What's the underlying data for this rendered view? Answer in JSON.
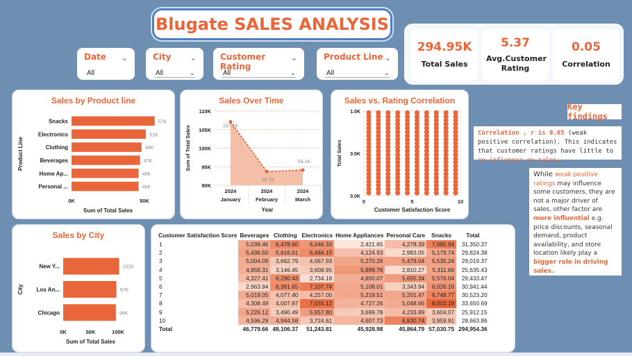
{
  "title": "Blugate SALES ANALYSIS",
  "slicers": [
    {
      "label": "Date",
      "value": "All"
    },
    {
      "label": "City",
      "value": "All"
    },
    {
      "label": "Customer Rating",
      "value": "All"
    },
    {
      "label": "Product Line",
      "value": "All"
    }
  ],
  "kpis": [
    {
      "value": "294.95K",
      "label": "Total Sales"
    },
    {
      "value": "5.37",
      "label": "Avg.Customer Rating"
    },
    {
      "value": "0.05",
      "label": "Correlation"
    }
  ],
  "key_findings": {
    "title": "Key findings",
    "note1_a": "Correlation , r is 0.05",
    "note1_b": " (weak positive correlation). This indicates that customer ratings have little to ",
    "note1_c": "no influence on sales.",
    "note2_a": "While ",
    "note2_b": "weak positive ratings",
    "note2_c": " may influence some customers, they are not a major driver of sales, other factor are ",
    "note2_d": "more influential",
    "note2_e": " e.g. price discounts, seasonal demand, product availability, and store location likely play a ",
    "note2_f": "bigger role in driving sales."
  },
  "chart_data": [
    {
      "type": "bar",
      "title": "Sales by Product line",
      "ylabel": "Product Line",
      "xlabel": "Sum of Total Sales",
      "categories": [
        "Snacks",
        "Electronics",
        "Clothing",
        "Beverages",
        "Home Ap...",
        "Personal ..."
      ],
      "values": [
        57,
        51,
        48,
        47,
        46,
        46
      ],
      "value_labels": [
        "57K",
        "51K",
        "48K",
        "47K",
        "46K",
        "46K"
      ],
      "xlim": [
        0,
        50
      ],
      "xticks": [
        "0K",
        "50K"
      ],
      "color": "#e8663a"
    },
    {
      "type": "area",
      "title": "Sales Over Time",
      "ylabel": "Sum of Total Sales",
      "xlabel": "Year",
      "categories": [
        "2024 January",
        "2024 February",
        "2024 March"
      ],
      "x_year": [
        "2024",
        "2024",
        "2024"
      ],
      "x_month": [
        "January",
        "February",
        "March"
      ],
      "values": [
        107.1,
        93.7,
        94.1
      ],
      "value_labels": [
        "107.1K",
        "93.7K",
        "94.1K"
      ],
      "ylim": [
        90,
        110
      ],
      "yticks": [
        "90K",
        "95K",
        "100K",
        "105K",
        "110K"
      ],
      "color": "#e8663a"
    },
    {
      "type": "scatter",
      "title": "Sales vs. Rating Correlation",
      "ylabel": "Total Sales",
      "xlabel": "Customer Satisfaction Score",
      "xlim": [
        0,
        10
      ],
      "ylim": [
        0,
        1.0
      ],
      "xticks": [
        "0",
        "5",
        "10"
      ],
      "yticks": [
        "0.0K",
        "0.5K",
        "1.0K"
      ],
      "x": [
        1,
        2,
        3,
        4,
        5,
        6,
        7,
        8,
        9,
        10
      ],
      "note": "dense vertical columns of points at each integer score from about 0 to 1.0K",
      "color": "#e8663a"
    },
    {
      "type": "bar",
      "title": "Sales by City",
      "ylabel": "City",
      "xlabel": "Sum of Total Sales",
      "categories": [
        "New Y...",
        "Los An...",
        "Chicago"
      ],
      "values": [
        102,
        97,
        96
      ],
      "value_labels": [
        "102K",
        "97K",
        "96K"
      ],
      "xlim": [
        0,
        100
      ],
      "xticks": [
        "0K",
        "50K",
        "100K"
      ],
      "color": "#e8663a"
    },
    {
      "type": "table",
      "headers": [
        "Customer Satisfaction Score",
        "Beverages",
        "Clothing",
        "Electronics",
        "Home Appliances",
        "Personal Care",
        "Snacks",
        "Total"
      ],
      "rows": [
        [
          "1",
          "5,039.46",
          "6,478.60",
          "6,046.33",
          "2,421.65",
          "4,278.39",
          "7,085.94",
          "31,350.37"
        ],
        [
          "2",
          "5,436.50",
          "5,616.01",
          "6,484.15",
          "4,124.93",
          "2,983.05",
          "5,179.74",
          "29,824.38"
        ],
        [
          "3",
          "5,004.09",
          "3,662.79",
          "4,067.93",
          "5,270.28",
          "5,479.04",
          "5,535.24",
          "29,019.37"
        ],
        [
          "4",
          "4,858.31",
          "3,146.45",
          "3,608.95",
          "5,899.76",
          "2,810.27",
          "5,311.69",
          "25,635.43"
        ],
        [
          "5",
          "4,327.41",
          "6,290.43",
          "2,734.18",
          "4,850.07",
          "5,655.34",
          "5,576.04",
          "29,433.47"
        ],
        [
          "6",
          "2,963.94",
          "6,391.65",
          "7,107.74",
          "5,108.01",
          "3,343.94",
          "6,026.16",
          "30,941.44"
        ],
        [
          "7",
          "5,019.05",
          "4,077.40",
          "4,257.00",
          "5,219.51",
          "5,201.47",
          "6,748.77",
          "30,523.20"
        ],
        [
          "8",
          "4,308.49",
          "4,007.97",
          "7,555.12",
          "4,727.26",
          "5,048.66",
          "8,003.19",
          "33,650.69"
        ],
        [
          "9",
          "5,226.12",
          "3,490.49",
          "5,657.80",
          "3,699.78",
          "4,233.89",
          "3,604.07",
          "25,912.15"
        ],
        [
          "10",
          "4,596.29",
          "4,944.58",
          "3,724.61",
          "4,607.73",
          "6,830.74",
          "3,959.91",
          "28,663.86"
        ]
      ],
      "total_row": [
        "Total",
        "46,779.66",
        "48,106.37",
        "51,243.81",
        "45,928.98",
        "45,864.79",
        "57,030.75",
        "294,954.36"
      ],
      "heat_scale": {
        "low": 2400,
        "high": 8100,
        "low_color": "#fbe6dc",
        "high_color": "#e8663a"
      }
    }
  ]
}
